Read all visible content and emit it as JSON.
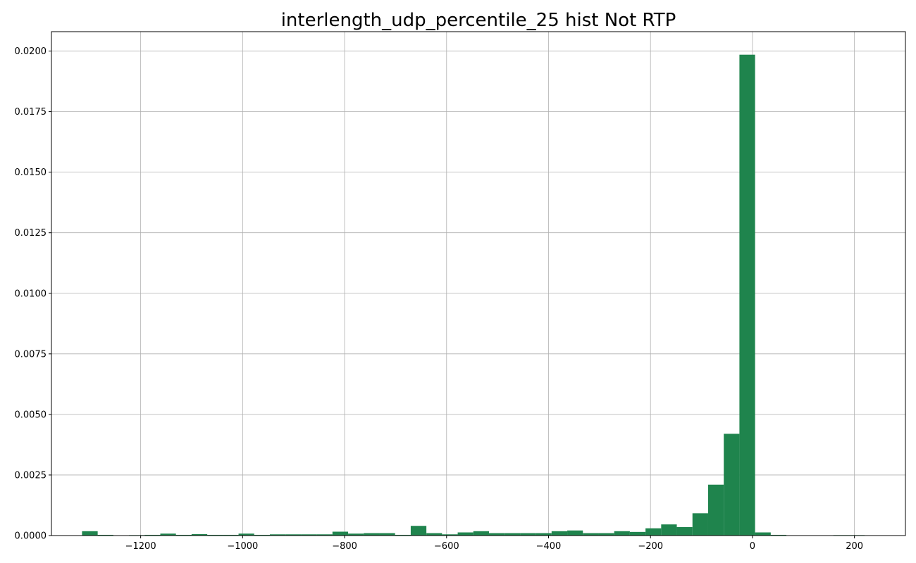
{
  "chart_data": {
    "type": "bar",
    "title": "interlength_udp_percentile_25 hist Not RTP",
    "xlabel": "",
    "ylabel": "",
    "xlim": [
      -1375,
      300
    ],
    "ylim": [
      0,
      0.0208
    ],
    "grid": true,
    "bar_color": "#1f844d",
    "x_ticks": [
      -1200,
      -1000,
      -800,
      -600,
      -400,
      -200,
      0,
      200
    ],
    "x_tick_labels": [
      "−1200",
      "−1000",
      "−800",
      "−600",
      "−400",
      "−200",
      "0",
      "200"
    ],
    "y_ticks": [
      0,
      0.0025,
      0.005,
      0.0075,
      0.01,
      0.0125,
      0.015,
      0.0175,
      0.02
    ],
    "y_tick_labels": [
      "0.0000",
      "0.0025",
      "0.0050",
      "0.0075",
      "0.0100",
      "0.0125",
      "0.0150",
      "0.0175",
      "0.0200"
    ],
    "bin_edges": [
      -1315,
      -1284.3,
      -1253.6,
      -1222.9,
      -1192.2,
      -1161.5,
      -1130.8,
      -1100.1,
      -1069.4,
      -1038.7,
      -1008,
      -977.3,
      -946.6,
      -915.9,
      -885.2,
      -854.5,
      -823.8,
      -793.1,
      -762.4,
      -731.7,
      -701,
      -670.3,
      -639.6,
      -608.9,
      -578.2,
      -547.5,
      -516.8,
      -486.1,
      -455.4,
      -424.7,
      -394,
      -363.3,
      -332.6,
      -301.9,
      -271.2,
      -240.5,
      -209.8,
      -179.1,
      -148.4,
      -117.7,
      -87,
      -56.3,
      -25.6,
      5.1,
      35.8,
      66.5,
      97.2,
      127.9,
      158.6,
      189.3,
      220
    ],
    "values": [
      0.00018,
      3e-05,
      0.0,
      2e-05,
      3e-05,
      8e-05,
      3e-05,
      6e-05,
      3e-05,
      3e-05,
      8e-05,
      3e-05,
      5e-05,
      5e-05,
      5e-05,
      5e-05,
      0.00016,
      8e-05,
      0.0001,
      0.0001,
      3e-05,
      0.0004,
      0.0001,
      5e-05,
      0.00013,
      0.00018,
      0.0001,
      0.0001,
      0.0001,
      0.0001,
      0.00018,
      0.00021,
      0.0001,
      0.0001,
      0.00018,
      0.00015,
      0.0003,
      0.00046,
      0.00035,
      0.00092,
      0.0021,
      0.0042,
      0.01985,
      0.00013,
      3e-05,
      0.0,
      0.0,
      0.0,
      2e-05,
      2e-05
    ]
  }
}
